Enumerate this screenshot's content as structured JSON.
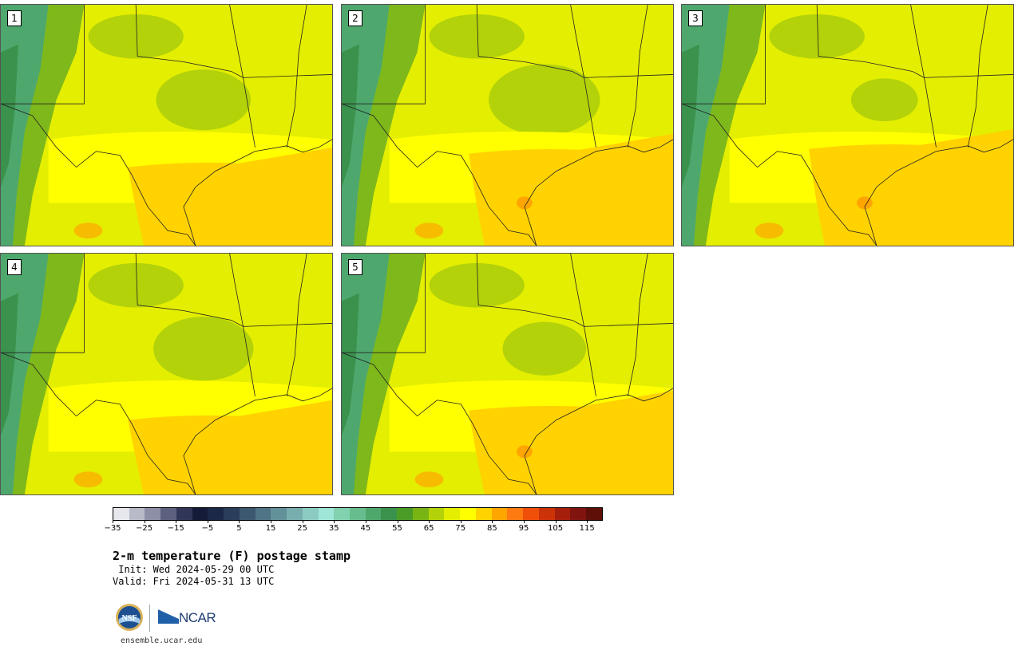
{
  "panels": [
    {
      "label": "1"
    },
    {
      "label": "2"
    },
    {
      "label": "3"
    },
    {
      "label": "4"
    },
    {
      "label": "5"
    }
  ],
  "colorbar": {
    "colors": [
      "#e6e8ee",
      "#b8bac8",
      "#8c8fa6",
      "#5d6180",
      "#313658",
      "#141b38",
      "#1c2848",
      "#2a3d5a",
      "#3c5870",
      "#4f7486",
      "#63919a",
      "#78aeae",
      "#8ccbc2",
      "#9fe6d6",
      "#82d1af",
      "#68bd8e",
      "#4ea86e",
      "#3a924c",
      "#4a9c26",
      "#79b415",
      "#b3d20a",
      "#e4ee00",
      "#ffff00",
      "#ffd200",
      "#ffa500",
      "#ff7a10",
      "#f04f0a",
      "#cc3308",
      "#a61e0c",
      "#821410",
      "#5e1008"
    ],
    "ticks": [
      "−35",
      "−25",
      "−15",
      "−5",
      "5",
      "15",
      "25",
      "35",
      "45",
      "55",
      "65",
      "75",
      "85",
      "95",
      "105",
      "115"
    ]
  },
  "title": "2-m temperature (F) postage stamp",
  "init": " Init: Wed 2024-05-29 00 UTC",
  "valid": "Valid: Fri 2024-05-31 13 UTC",
  "logos": {
    "nsf": "NSF",
    "ncar": "NCAR"
  },
  "website": "ensemble.ucar.edu"
}
